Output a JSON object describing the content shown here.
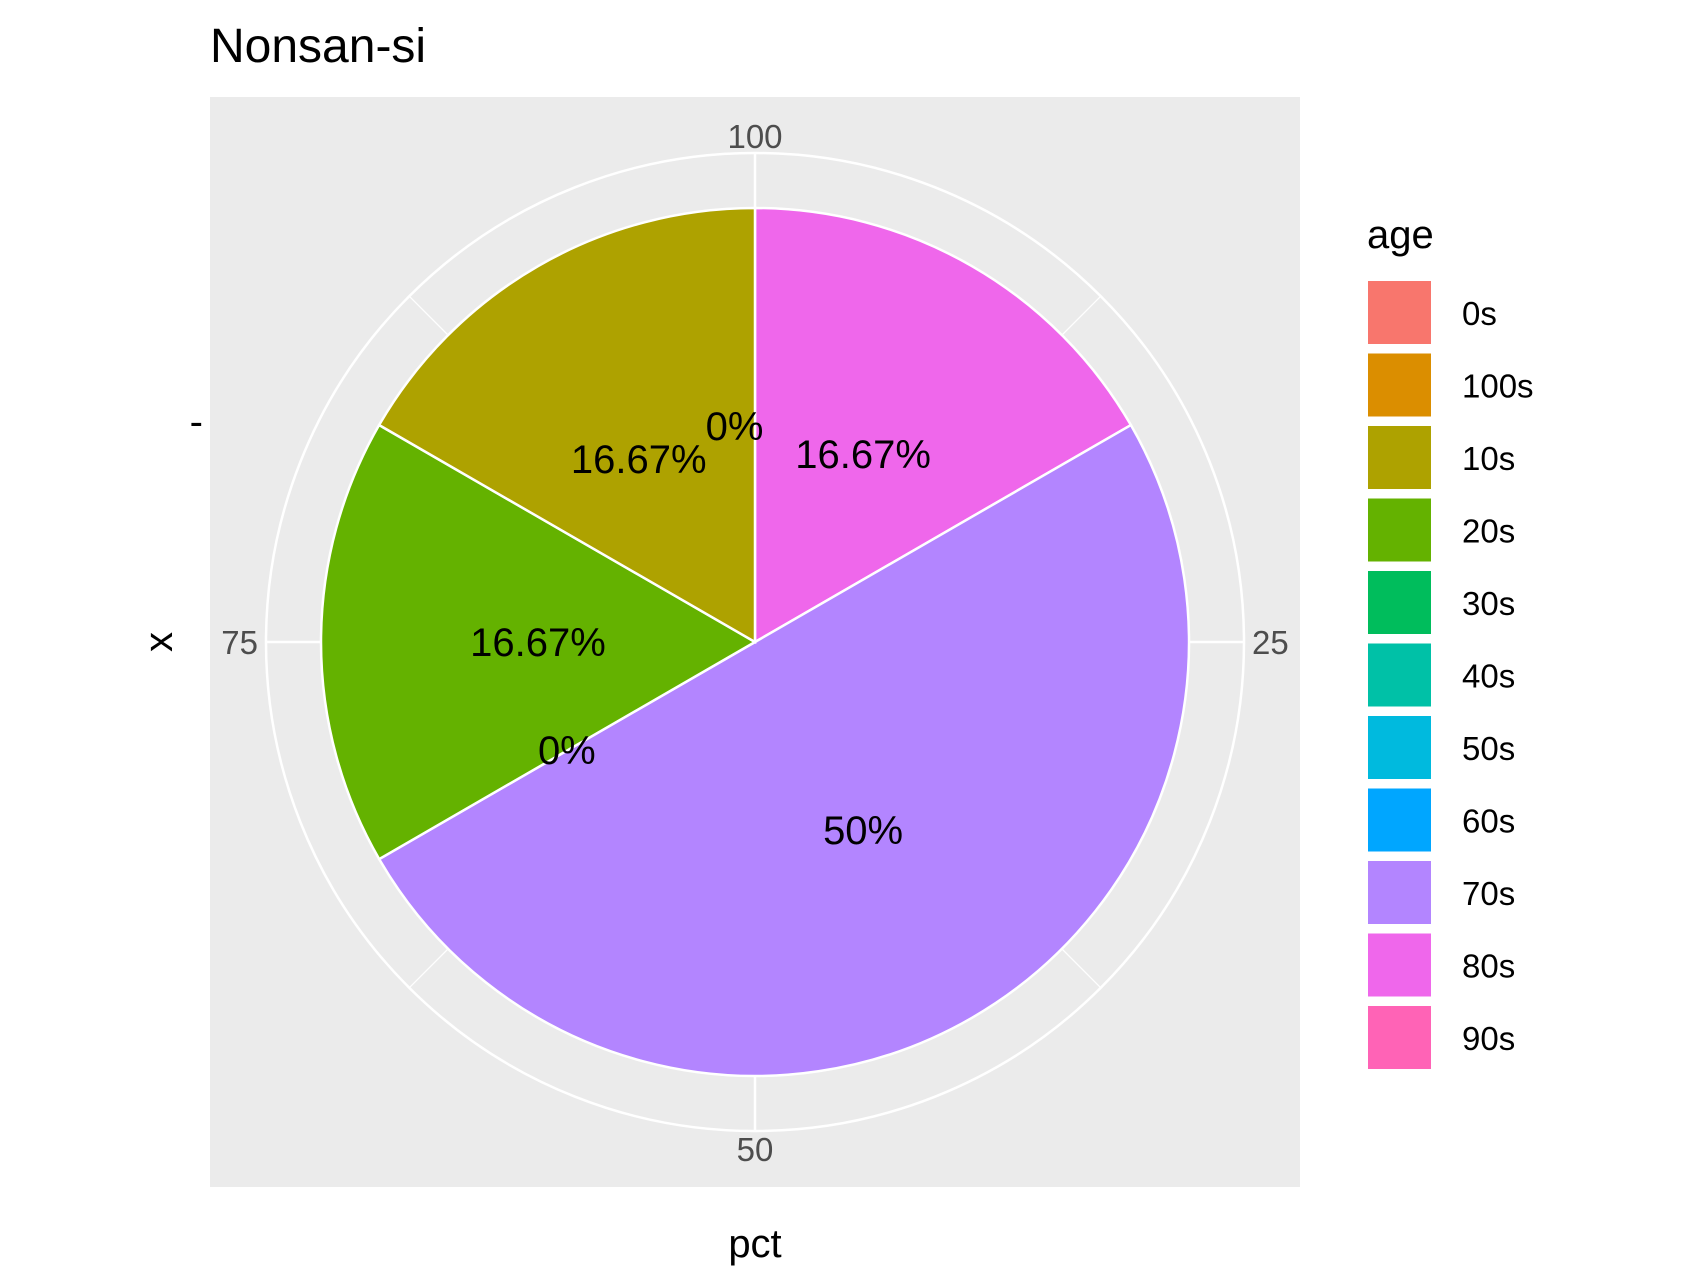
{
  "chart_data": {
    "type": "pie",
    "title": "Nonsan-si",
    "xlabel": "pct",
    "ylabel": "x",
    "y_tick_label": "-",
    "angle_ticks": [
      "100",
      "25",
      "50",
      "75"
    ],
    "categories": [
      "0s",
      "100s",
      "10s",
      "20s",
      "30s",
      "40s",
      "50s",
      "60s",
      "70s",
      "80s",
      "90s"
    ],
    "values": [
      0,
      0,
      16.67,
      16.67,
      0,
      0,
      0,
      0,
      50,
      16.67,
      0
    ],
    "slice_labels": [
      {
        "text": "0%",
        "cum_pct": 98.5
      },
      {
        "text": "16.67%",
        "cum_pct": 91.0
      },
      {
        "text": "16.67%",
        "cum_pct": 75.0
      },
      {
        "text": "0%",
        "cum_pct": 66.7
      },
      {
        "text": "50%",
        "cum_pct": 41.7
      },
      {
        "text": "16.67%",
        "cum_pct": 8.3
      }
    ],
    "colors": {
      "0s": "#F8766D",
      "100s": "#DB8E00",
      "10s": "#AEA200",
      "20s": "#64B200",
      "30s": "#00BD5C",
      "40s": "#00C1A7",
      "50s": "#00BADE",
      "60s": "#00A6FF",
      "70s": "#B385FF",
      "80s": "#EF67EB",
      "90s": "#FF63B6"
    },
    "legend": {
      "title": "age",
      "position": "right"
    },
    "grid": true,
    "panel_background": "#EBEBEB"
  }
}
